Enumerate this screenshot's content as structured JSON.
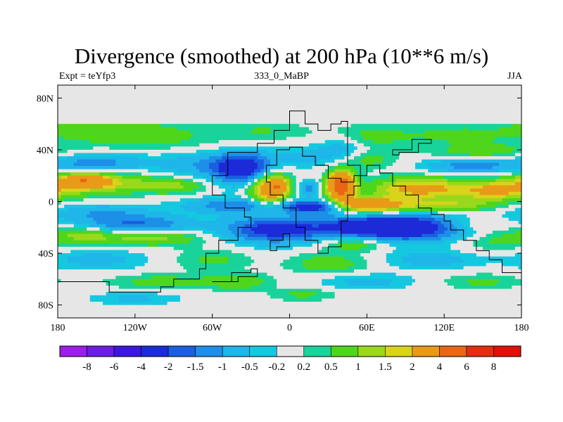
{
  "header": {
    "title": "Divergence (smoothed) at 200 hPa (10**6 m/s)",
    "left_label": "Expt = teYfp3",
    "center_label": "333_0_MaBP",
    "right_label": "JJA"
  },
  "chart_data": {
    "type": "heatmap",
    "title": "Divergence (smoothed) at 200 hPa (10**6 m/s)",
    "subtitle_left": "Expt = teYfp3",
    "subtitle_center": "333_0_MaBP",
    "subtitle_right": "JJA",
    "x_range": [
      -180,
      180
    ],
    "y_range": [
      -90,
      90
    ],
    "x_ticks": [
      {
        "value": -180,
        "label": "180"
      },
      {
        "value": -120,
        "label": "120W"
      },
      {
        "value": -60,
        "label": "60W"
      },
      {
        "value": 0,
        "label": "0"
      },
      {
        "value": 60,
        "label": "60E"
      },
      {
        "value": 120,
        "label": "120E"
      },
      {
        "value": 180,
        "label": "180"
      }
    ],
    "y_ticks": [
      {
        "value": 80,
        "label": "80N"
      },
      {
        "value": 40,
        "label": "40N"
      },
      {
        "value": 0,
        "label": "0"
      },
      {
        "value": -40,
        "label": "40S"
      },
      {
        "value": -80,
        "label": "80S"
      }
    ],
    "colorbar": {
      "labels": [
        "-8",
        "-6",
        "-4",
        "-2",
        "-1.5",
        "-1",
        "-0.5",
        "-0.2",
        "0.2",
        "0.5",
        "1",
        "1.5",
        "2",
        "4",
        "6",
        "8"
      ],
      "colors": [
        "#9b1fe8",
        "#6a1ee2",
        "#3c17df",
        "#1c2bd8",
        "#1a5fe0",
        "#1d8fe8",
        "#1fb6e9",
        "#14c9df",
        "#e6e6e6",
        "#19d39a",
        "#4fd61c",
        "#9ad81c",
        "#d9d31a",
        "#e89a18",
        "#e86614",
        "#e32e12",
        "#e11008"
      ]
    },
    "blobs": [
      {
        "lon": -150,
        "lat": 58,
        "rx": 45,
        "ry": 12,
        "v": 0.8
      },
      {
        "lon": -100,
        "lat": 50,
        "rx": 50,
        "ry": 10,
        "v": 0.6
      },
      {
        "lon": -20,
        "lat": 55,
        "rx": 30,
        "ry": 8,
        "v": 0.5
      },
      {
        "lon": 60,
        "lat": 50,
        "rx": 35,
        "ry": 9,
        "v": 0.7
      },
      {
        "lon": 130,
        "lat": 52,
        "rx": 40,
        "ry": 8,
        "v": 0.6
      },
      {
        "lon": 40,
        "lat": 42,
        "rx": 18,
        "ry": 10,
        "v": -0.8
      },
      {
        "lon": 150,
        "lat": 38,
        "rx": 40,
        "ry": 7,
        "v": 0.8
      },
      {
        "lon": -150,
        "lat": 30,
        "rx": 40,
        "ry": 7,
        "v": -1.2
      },
      {
        "lon": -60,
        "lat": 28,
        "rx": 40,
        "ry": 10,
        "v": -1.0
      },
      {
        "lon": -35,
        "lat": 25,
        "rx": 22,
        "ry": 12,
        "v": -2.5
      },
      {
        "lon": 15,
        "lat": 35,
        "rx": 25,
        "ry": 8,
        "v": -0.6
      },
      {
        "lon": 60,
        "lat": 32,
        "rx": 22,
        "ry": 7,
        "v": 0.7
      },
      {
        "lon": 140,
        "lat": 28,
        "rx": 35,
        "ry": 6,
        "v": -1.3
      },
      {
        "lon": -150,
        "lat": 14,
        "rx": 45,
        "ry": 8,
        "v": 1.6
      },
      {
        "lon": -160,
        "lat": 16,
        "rx": 18,
        "ry": 5,
        "v": 2.6
      },
      {
        "lon": -90,
        "lat": 12,
        "rx": 25,
        "ry": 6,
        "v": 1.0
      },
      {
        "lon": -15,
        "lat": 10,
        "rx": 15,
        "ry": 13,
        "v": 3.2
      },
      {
        "lon": -8,
        "lat": 12,
        "rx": 5,
        "ry": 5,
        "v": 2.0
      },
      {
        "lon": 15,
        "lat": 10,
        "rx": 8,
        "ry": 6,
        "v": -1.2
      },
      {
        "lon": 40,
        "lat": 12,
        "rx": 10,
        "ry": 10,
        "v": 5.5
      },
      {
        "lon": 100,
        "lat": 10,
        "rx": 35,
        "ry": 8,
        "v": 2.4
      },
      {
        "lon": 160,
        "lat": 8,
        "rx": 30,
        "ry": 7,
        "v": 2.0
      },
      {
        "lon": -40,
        "lat": -3,
        "rx": 40,
        "ry": 6,
        "v": -1.5
      },
      {
        "lon": 20,
        "lat": -4,
        "rx": 25,
        "ry": 5,
        "v": -2.5
      },
      {
        "lon": 60,
        "lat": -3,
        "rx": 28,
        "ry": 6,
        "v": 3.2
      },
      {
        "lon": 120,
        "lat": -3,
        "rx": 40,
        "ry": 5,
        "v": 1.5
      },
      {
        "lon": -150,
        "lat": -8,
        "rx": 40,
        "ry": 6,
        "v": -0.8
      },
      {
        "lon": -120,
        "lat": -18,
        "rx": 45,
        "ry": 8,
        "v": -1.6
      },
      {
        "lon": -15,
        "lat": -22,
        "rx": 35,
        "ry": 10,
        "v": -2.2
      },
      {
        "lon": 80,
        "lat": -20,
        "rx": 60,
        "ry": 10,
        "v": -3.5
      },
      {
        "lon": 140,
        "lat": -18,
        "rx": 30,
        "ry": 7,
        "v": 1.0
      },
      {
        "lon": -160,
        "lat": -25,
        "rx": 25,
        "ry": 6,
        "v": 1.2
      },
      {
        "lon": -110,
        "lat": -28,
        "rx": 40,
        "ry": 6,
        "v": 1.4
      },
      {
        "lon": 50,
        "lat": -32,
        "rx": 25,
        "ry": 6,
        "v": 1.2
      },
      {
        "lon": 160,
        "lat": -30,
        "rx": 30,
        "ry": 8,
        "v": 0.7
      },
      {
        "lon": -150,
        "lat": -45,
        "rx": 40,
        "ry": 8,
        "v": -0.7
      },
      {
        "lon": -60,
        "lat": -45,
        "rx": 30,
        "ry": 8,
        "v": 0.6
      },
      {
        "lon": 30,
        "lat": -48,
        "rx": 30,
        "ry": 8,
        "v": 0.8
      },
      {
        "lon": 110,
        "lat": -45,
        "rx": 35,
        "ry": 7,
        "v": -0.8
      },
      {
        "lon": -100,
        "lat": -62,
        "rx": 40,
        "ry": 6,
        "v": 0.7
      },
      {
        "lon": -40,
        "lat": -62,
        "rx": 25,
        "ry": 6,
        "v": 0.9
      },
      {
        "lon": 60,
        "lat": -62,
        "rx": 35,
        "ry": 6,
        "v": -0.7
      },
      {
        "lon": 150,
        "lat": -62,
        "rx": 30,
        "ry": 6,
        "v": 0.6
      },
      {
        "lon": -120,
        "lat": -75,
        "rx": 35,
        "ry": 5,
        "v": -0.6
      },
      {
        "lon": 10,
        "lat": -72,
        "rx": 25,
        "ry": 5,
        "v": 0.6
      }
    ],
    "coastlines": [
      [
        [
          -180,
          -62
        ],
        [
          -150,
          -62
        ],
        [
          -140,
          -70
        ],
        [
          -115,
          -70
        ],
        [
          -100,
          -66
        ],
        [
          -90,
          -60
        ],
        [
          -70,
          -52
        ],
        [
          -65,
          -40
        ],
        [
          -55,
          -30
        ],
        [
          -40,
          -20
        ],
        [
          -30,
          -12
        ],
        [
          -35,
          -5
        ],
        [
          -50,
          5
        ],
        [
          -60,
          20
        ],
        [
          -48,
          38
        ],
        [
          -25,
          45
        ],
        [
          -12,
          55
        ],
        [
          0,
          70
        ],
        [
          12,
          70
        ],
        [
          12,
          60
        ],
        [
          22,
          55
        ],
        [
          32,
          60
        ],
        [
          40,
          62
        ],
        [
          45,
          40
        ],
        [
          45,
          28
        ],
        [
          55,
          12
        ],
        [
          50,
          5
        ],
        [
          45,
          -15
        ],
        [
          40,
          -35
        ],
        [
          30,
          -40
        ],
        [
          22,
          -30
        ],
        [
          12,
          -20
        ],
        [
          5,
          -5
        ],
        [
          -5,
          5
        ],
        [
          -15,
          15
        ],
        [
          -18,
          28
        ],
        [
          -10,
          40
        ],
        [
          0,
          42
        ],
        [
          10,
          35
        ],
        [
          20,
          28
        ],
        [
          30,
          18
        ],
        [
          40,
          15
        ],
        [
          50,
          20
        ],
        [
          60,
          28
        ],
        [
          70,
          22
        ],
        [
          80,
          12
        ],
        [
          90,
          5
        ],
        [
          100,
          -5
        ],
        [
          110,
          -10
        ],
        [
          120,
          -15
        ],
        [
          125,
          -22
        ],
        [
          135,
          -30
        ],
        [
          145,
          -38
        ],
        [
          155,
          -45
        ],
        [
          165,
          -55
        ],
        [
          180,
          -62
        ]
      ],
      [
        [
          -60,
          -62
        ],
        [
          -45,
          -55
        ],
        [
          -30,
          -52
        ],
        [
          -25,
          -58
        ],
        [
          -40,
          -62
        ],
        [
          -60,
          -62
        ]
      ],
      [
        [
          -15,
          -30
        ],
        [
          -5,
          -25
        ],
        [
          0,
          -35
        ],
        [
          -10,
          -38
        ],
        [
          -15,
          -30
        ]
      ],
      [
        [
          80,
          40
        ],
        [
          95,
          48
        ],
        [
          110,
          45
        ],
        [
          100,
          38
        ],
        [
          85,
          36
        ],
        [
          80,
          40
        ]
      ]
    ]
  }
}
